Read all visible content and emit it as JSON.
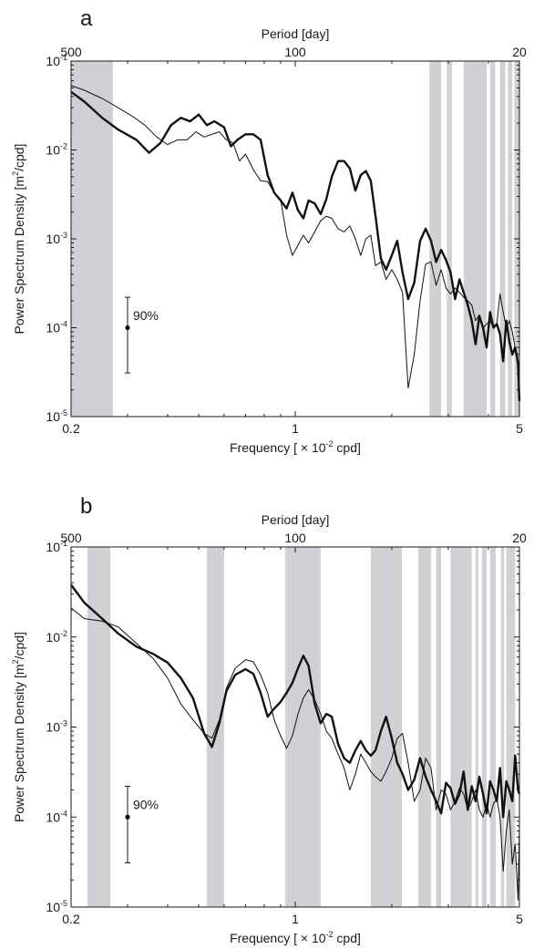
{
  "chart_data": [
    {
      "type": "line",
      "panel_label": "a",
      "title": "",
      "xlabel": "Frequency [ × 10",
      "xlabel_exp": "-2",
      "xlabel_suffix": " cpd]",
      "ylabel": "Power Spectrum Density [m",
      "ylabel_exp": "2",
      "ylabel_suffix": "/cpd]",
      "x2label": "Period [day]",
      "x_scale": "log",
      "y_scale": "log",
      "xlim": [
        0.2,
        5
      ],
      "ylim": [
        1e-05,
        0.1
      ],
      "x_ticks": [
        {
          "v": 0.2,
          "label": "0.2"
        },
        {
          "v": 1,
          "label": "1"
        },
        {
          "v": 5,
          "label": "5"
        }
      ],
      "x2_ticks": [
        {
          "v": 0.2,
          "label": "500"
        },
        {
          "v": 1,
          "label": "100"
        },
        {
          "v": 5,
          "label": "20"
        }
      ],
      "y_ticks": [
        {
          "v": 1e-05,
          "exp": "-5"
        },
        {
          "v": 0.0001,
          "exp": "-4"
        },
        {
          "v": 0.001,
          "exp": "-3"
        },
        {
          "v": 0.01,
          "exp": "-2"
        },
        {
          "v": 0.1,
          "exp": "-1"
        }
      ],
      "shaded_bands": [
        [
          0.2,
          0.27
        ],
        [
          2.62,
          2.85
        ],
        [
          2.97,
          3.08
        ],
        [
          3.35,
          3.95
        ],
        [
          4.05,
          4.2
        ],
        [
          4.35,
          4.52
        ],
        [
          4.6,
          4.75
        ],
        [
          4.82,
          5.0
        ]
      ],
      "confidence_interval": {
        "label": "90%",
        "x": 0.3,
        "center": 0.0001,
        "low": 3.1e-05,
        "high": 0.00022
      },
      "series": [
        {
          "style": "thick",
          "x": [
            0.2,
            0.22,
            0.25,
            0.28,
            0.32,
            0.35,
            0.38,
            0.41,
            0.44,
            0.47,
            0.5,
            0.53,
            0.56,
            0.6,
            0.63,
            0.66,
            0.7,
            0.74,
            0.78,
            0.82,
            0.86,
            0.9,
            0.94,
            0.98,
            1.02,
            1.06,
            1.1,
            1.15,
            1.2,
            1.25,
            1.3,
            1.36,
            1.42,
            1.48,
            1.54,
            1.6,
            1.66,
            1.72,
            1.78,
            1.85,
            1.92,
            2.0,
            2.08,
            2.16,
            2.25,
            2.35,
            2.45,
            2.55,
            2.65,
            2.75,
            2.85,
            2.95,
            3.05,
            3.15,
            3.25,
            3.35,
            3.45,
            3.55,
            3.65,
            3.75,
            3.85,
            3.95,
            4.05,
            4.15,
            4.25,
            4.35,
            4.45,
            4.55,
            4.65,
            4.75,
            4.85,
            4.95,
            5.0
          ],
          "y": [
            0.045,
            0.035,
            0.023,
            0.017,
            0.013,
            0.0093,
            0.012,
            0.019,
            0.023,
            0.021,
            0.025,
            0.019,
            0.021,
            0.018,
            0.011,
            0.013,
            0.015,
            0.015,
            0.013,
            0.0052,
            0.0033,
            0.0027,
            0.0022,
            0.0033,
            0.0021,
            0.0017,
            0.0027,
            0.0025,
            0.0019,
            0.0028,
            0.005,
            0.0075,
            0.0075,
            0.0062,
            0.0035,
            0.0052,
            0.0058,
            0.0045,
            0.0018,
            0.0006,
            0.00045,
            0.00065,
            0.00095,
            0.00042,
            0.00021,
            0.00032,
            0.00095,
            0.0013,
            0.00095,
            0.00055,
            0.00075,
            0.00058,
            0.00042,
            0.00021,
            0.00035,
            0.00025,
            0.00018,
            0.00012,
            6.5e-05,
            0.000135,
            0.0001,
            6e-05,
            0.00015,
            0.0001,
            0.00011,
            8.5e-05,
            4.2e-05,
            0.00012,
            7e-05,
            5e-05,
            6e-05,
            4e-05,
            1.5e-05
          ]
        },
        {
          "style": "thin",
          "x": [
            0.2,
            0.22,
            0.25,
            0.28,
            0.31,
            0.34,
            0.37,
            0.4,
            0.43,
            0.46,
            0.49,
            0.52,
            0.55,
            0.58,
            0.61,
            0.64,
            0.67,
            0.7,
            0.74,
            0.78,
            0.82,
            0.86,
            0.9,
            0.94,
            0.98,
            1.02,
            1.06,
            1.1,
            1.15,
            1.2,
            1.25,
            1.3,
            1.36,
            1.42,
            1.48,
            1.54,
            1.6,
            1.66,
            1.72,
            1.78,
            1.85,
            1.92,
            2.0,
            2.08,
            2.16,
            2.25,
            2.35,
            2.45,
            2.55,
            2.65,
            2.75,
            2.85,
            2.95,
            3.05,
            3.15,
            3.25,
            3.35,
            3.45,
            3.55,
            3.65,
            3.75,
            3.85,
            3.95,
            4.05,
            4.15,
            4.25,
            4.35,
            4.45,
            4.55,
            4.65,
            4.75,
            4.85,
            4.95,
            5.0
          ],
          "y": [
            0.053,
            0.047,
            0.038,
            0.03,
            0.024,
            0.019,
            0.014,
            0.0115,
            0.013,
            0.013,
            0.016,
            0.014,
            0.015,
            0.016,
            0.013,
            0.012,
            0.0075,
            0.009,
            0.006,
            0.0045,
            0.0044,
            0.0033,
            0.0028,
            0.0011,
            0.00065,
            0.00085,
            0.0011,
            0.0009,
            0.0012,
            0.0016,
            0.0018,
            0.0017,
            0.0013,
            0.0012,
            0.0014,
            0.001,
            0.00065,
            0.001,
            0.0011,
            0.0005,
            0.00055,
            0.00035,
            0.00045,
            0.00035,
            0.00025,
            2.1e-05,
            5e-05,
            0.0002,
            0.00052,
            0.00055,
            0.0003,
            0.00045,
            0.00028,
            0.00024,
            0.00028,
            0.00025,
            0.00022,
            0.0002,
            0.00018,
            0.00012,
            0.00014,
            0.0001,
            0.00011,
            0.00012,
            0.0001,
            0.00011,
            0.00024,
            0.00015,
            0.0001,
            0.00012,
            9e-05,
            6e-05,
            3.5e-05,
            2e-05
          ]
        }
      ]
    },
    {
      "type": "line",
      "panel_label": "b",
      "title": "",
      "xlabel": "Frequency [ × 10",
      "xlabel_exp": "-2",
      "xlabel_suffix": " cpd]",
      "ylabel": "Power Spectrum Density [m",
      "ylabel_exp": "2",
      "ylabel_suffix": "/cpd]",
      "x2label": "Period [day]",
      "x_scale": "log",
      "y_scale": "log",
      "xlim": [
        0.2,
        5
      ],
      "ylim": [
        1e-05,
        0.1
      ],
      "x_ticks": [
        {
          "v": 0.2,
          "label": "0.2"
        },
        {
          "v": 1,
          "label": "1"
        },
        {
          "v": 5,
          "label": "5"
        }
      ],
      "x2_ticks": [
        {
          "v": 0.2,
          "label": "500"
        },
        {
          "v": 1,
          "label": "100"
        },
        {
          "v": 5,
          "label": "20"
        }
      ],
      "y_ticks": [
        {
          "v": 1e-05,
          "exp": "-5"
        },
        {
          "v": 0.0001,
          "exp": "-4"
        },
        {
          "v": 0.001,
          "exp": "-3"
        },
        {
          "v": 0.01,
          "exp": "-2"
        },
        {
          "v": 0.1,
          "exp": "-1"
        }
      ],
      "shaded_bands": [
        [
          0.225,
          0.265
        ],
        [
          0.53,
          0.6
        ],
        [
          0.93,
          1.2
        ],
        [
          1.72,
          2.15
        ],
        [
          2.42,
          2.65
        ],
        [
          2.75,
          2.85
        ],
        [
          3.05,
          3.55
        ],
        [
          3.65,
          3.72
        ],
        [
          3.82,
          3.95
        ],
        [
          4.05,
          4.22
        ],
        [
          4.38,
          4.48
        ],
        [
          4.55,
          4.85
        ]
      ],
      "confidence_interval": {
        "label": "90%",
        "x": 0.3,
        "center": 0.0001,
        "low": 3.1e-05,
        "high": 0.00022
      },
      "series": [
        {
          "style": "thick",
          "x": [
            0.2,
            0.22,
            0.25,
            0.28,
            0.32,
            0.36,
            0.4,
            0.44,
            0.48,
            0.52,
            0.55,
            0.58,
            0.61,
            0.65,
            0.7,
            0.74,
            0.78,
            0.82,
            0.86,
            0.9,
            0.94,
            0.98,
            1.02,
            1.06,
            1.1,
            1.15,
            1.2,
            1.25,
            1.3,
            1.36,
            1.42,
            1.48,
            1.54,
            1.6,
            1.66,
            1.72,
            1.78,
            1.85,
            1.92,
            2.0,
            2.08,
            2.16,
            2.25,
            2.35,
            2.45,
            2.55,
            2.65,
            2.75,
            2.85,
            2.95,
            3.05,
            3.15,
            3.25,
            3.35,
            3.45,
            3.55,
            3.65,
            3.75,
            3.85,
            3.95,
            4.05,
            4.15,
            4.25,
            4.35,
            4.45,
            4.55,
            4.65,
            4.75,
            4.85,
            4.95,
            5.0
          ],
          "y": [
            0.038,
            0.024,
            0.016,
            0.011,
            0.0078,
            0.0065,
            0.0052,
            0.0035,
            0.0021,
            0.00085,
            0.0006,
            0.0011,
            0.0025,
            0.0038,
            0.0044,
            0.0039,
            0.0024,
            0.0013,
            0.0016,
            0.0019,
            0.0024,
            0.0031,
            0.0045,
            0.0062,
            0.0048,
            0.0018,
            0.0011,
            0.0014,
            0.0013,
            0.00065,
            0.00045,
            0.0004,
            0.00055,
            0.0007,
            0.00055,
            0.00048,
            0.00055,
            0.0009,
            0.0013,
            0.00075,
            0.0004,
            0.0003,
            0.0002,
            0.00026,
            0.00045,
            0.00028,
            0.0002,
            0.00015,
            0.00011,
            0.00024,
            0.00021,
            0.00014,
            0.00018,
            0.00032,
            0.00012,
            0.00022,
            0.00015,
            0.00028,
            0.00018,
            0.00011,
            0.00025,
            0.0002,
            0.00015,
            0.00035,
            0.0001,
            0.00025,
            0.0002,
            0.00015,
            0.00048,
            0.0002,
            0.00018
          ]
        },
        {
          "style": "thin",
          "x": [
            0.2,
            0.22,
            0.25,
            0.28,
            0.32,
            0.36,
            0.4,
            0.44,
            0.48,
            0.52,
            0.55,
            0.58,
            0.61,
            0.65,
            0.7,
            0.74,
            0.78,
            0.82,
            0.86,
            0.9,
            0.94,
            0.98,
            1.02,
            1.06,
            1.1,
            1.15,
            1.2,
            1.25,
            1.3,
            1.36,
            1.42,
            1.48,
            1.54,
            1.6,
            1.66,
            1.72,
            1.78,
            1.85,
            1.92,
            2.0,
            2.08,
            2.16,
            2.25,
            2.35,
            2.45,
            2.55,
            2.65,
            2.75,
            2.85,
            2.95,
            3.05,
            3.15,
            3.25,
            3.35,
            3.45,
            3.55,
            3.65,
            3.75,
            3.85,
            3.95,
            4.05,
            4.15,
            4.25,
            4.35,
            4.45,
            4.55,
            4.65,
            4.75,
            4.85,
            4.95,
            5.0
          ],
          "y": [
            0.021,
            0.016,
            0.015,
            0.013,
            0.0085,
            0.0058,
            0.0035,
            0.0018,
            0.0012,
            0.00085,
            0.00075,
            0.0012,
            0.0027,
            0.0045,
            0.0056,
            0.0053,
            0.0038,
            0.0024,
            0.0012,
            0.0008,
            0.00058,
            0.0008,
            0.0014,
            0.0021,
            0.0026,
            0.002,
            0.0014,
            0.0009,
            0.00075,
            0.0005,
            0.00035,
            0.0002,
            0.0003,
            0.0005,
            0.0004,
            0.00032,
            0.00028,
            0.00025,
            0.00032,
            0.00045,
            0.00075,
            0.00085,
            0.0004,
            0.00015,
            0.0002,
            0.00045,
            0.00035,
            0.00012,
            0.0002,
            0.00018,
            0.00012,
            0.00015,
            0.00021,
            0.00018,
            0.00012,
            0.00015,
            0.0002,
            0.00012,
            0.0001,
            0.00014,
            0.0001,
            0.00014,
            0.00016,
            0.0001,
            2.5e-05,
            7e-05,
            0.00012,
            3e-05,
            5e-05,
            1.2e-05,
            8e-05
          ]
        }
      ]
    }
  ]
}
